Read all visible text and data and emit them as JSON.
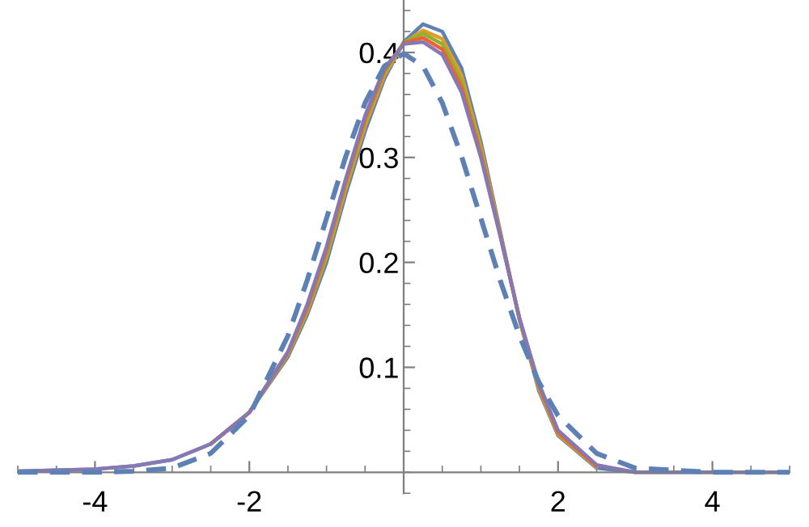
{
  "chart_data": {
    "type": "line",
    "x": [
      -5,
      -4,
      -3.5,
      -3,
      -2.5,
      -2,
      -1.5,
      -1.25,
      -1,
      -0.75,
      -0.5,
      -0.25,
      0,
      0.25,
      0.5,
      0.75,
      1,
      1.25,
      1.5,
      1.75,
      2,
      2.5,
      3,
      4,
      5
    ],
    "series": [
      {
        "color": "#5e81b5",
        "values": [
          0.001,
          0.003,
          0.006,
          0.012,
          0.027,
          0.057,
          0.11,
          0.15,
          0.2,
          0.265,
          0.325,
          0.375,
          0.41,
          0.427,
          0.42,
          0.385,
          0.315,
          0.23,
          0.145,
          0.078,
          0.035,
          0.004,
          0,
          0,
          0
        ]
      },
      {
        "color": "#e19c24",
        "values": [
          null,
          null,
          null,
          null,
          0.027,
          0.057,
          0.112,
          0.153,
          0.205,
          0.27,
          0.33,
          0.378,
          0.409,
          0.421,
          0.413,
          0.378,
          0.31,
          0.228,
          0.146,
          0.08,
          0.036,
          0.005,
          null,
          null,
          null
        ]
      },
      {
        "color": "#8fb032",
        "values": [
          null,
          null,
          null,
          null,
          0.027,
          0.057,
          0.113,
          0.155,
          0.208,
          0.274,
          0.334,
          0.381,
          0.409,
          0.418,
          0.408,
          0.372,
          0.306,
          0.227,
          0.146,
          0.082,
          0.037,
          0.006,
          null,
          null,
          null
        ]
      },
      {
        "color": "#eb6235",
        "values": [
          null,
          null,
          null,
          null,
          0.027,
          0.057,
          0.114,
          0.157,
          0.212,
          0.277,
          0.337,
          0.383,
          0.409,
          0.414,
          0.403,
          0.367,
          0.303,
          0.226,
          0.147,
          0.083,
          0.038,
          0.006,
          null,
          null,
          null
        ]
      },
      {
        "color": "#8778b3",
        "values": [
          0.001,
          0.003,
          0.006,
          0.012,
          0.027,
          0.057,
          0.115,
          0.16,
          0.215,
          0.28,
          0.34,
          0.385,
          0.408,
          0.41,
          0.398,
          0.362,
          0.3,
          0.225,
          0.147,
          0.085,
          0.04,
          0.007,
          0,
          0,
          0
        ]
      },
      {
        "color": "#5e81b5",
        "line_style": "dashed",
        "values": [
          0,
          0,
          0.001,
          0.004,
          0.018,
          0.054,
          0.13,
          0.183,
          0.242,
          0.301,
          0.352,
          0.387,
          0.399,
          0.387,
          0.352,
          0.301,
          0.242,
          0.183,
          0.13,
          0.086,
          0.054,
          0.018,
          0.004,
          0,
          0
        ]
      }
    ],
    "xlim": [
      -5,
      5
    ],
    "ylim": [
      -0.02,
      0.45
    ],
    "xticks": [
      -4,
      -2,
      2,
      4
    ],
    "yticks": [
      0.1,
      0.2,
      0.3,
      0.4
    ],
    "grid": false,
    "legend": false,
    "marker": "none",
    "line_style": "solid"
  }
}
